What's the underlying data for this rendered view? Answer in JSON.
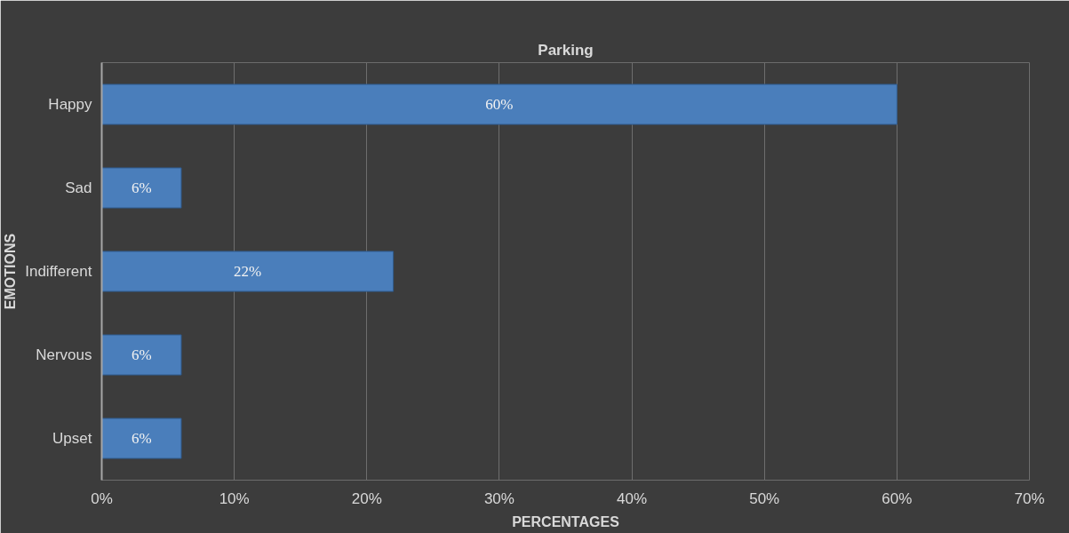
{
  "chart_data": {
    "type": "bar",
    "orientation": "horizontal",
    "title": "Parking",
    "xlabel": "PERCENTAGES",
    "ylabel": "EMOTIONS",
    "categories": [
      "Happy",
      "Sad",
      "Indifferent",
      "Nervous",
      "Upset"
    ],
    "values": [
      60,
      6,
      22,
      6,
      6
    ],
    "color": "#4a7ebb",
    "value_labels": [
      "60%",
      "6%",
      "22%",
      "6%",
      "6%"
    ],
    "xlim": [
      0,
      70
    ],
    "xticks": [
      {
        "value": 0,
        "label": "0%"
      },
      {
        "value": 10,
        "label": "10%"
      },
      {
        "value": 20,
        "label": "20%"
      },
      {
        "value": 30,
        "label": "30%"
      },
      {
        "value": 40,
        "label": "40%"
      },
      {
        "value": 50,
        "label": "50%"
      },
      {
        "value": 60,
        "label": "60%"
      },
      {
        "value": 70,
        "label": "70%"
      }
    ],
    "grid": "x"
  }
}
